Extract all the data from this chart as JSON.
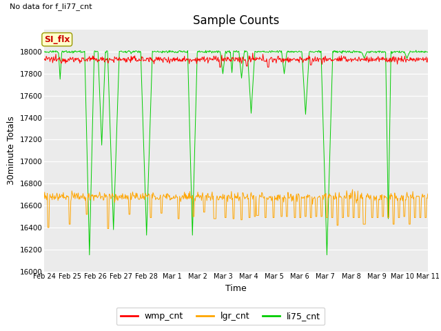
{
  "title": "Sample Counts",
  "xlabel": "Time",
  "ylabel": "30minute Totals",
  "top_left_text": "No data for f_li77_cnt",
  "annotation_text": "SI_flx",
  "ylim": [
    16000,
    18200
  ],
  "yticks": [
    16000,
    16200,
    16400,
    16600,
    16800,
    17000,
    17200,
    17400,
    17600,
    17800,
    18000
  ],
  "x_tick_labels": [
    "Feb 24",
    "Feb 25",
    "Feb 26",
    "Feb 27",
    "Feb 28",
    "Mar 1",
    "Mar 2",
    "Mar 3",
    "Mar 4",
    "Mar 5",
    "Mar 6",
    "Mar 7",
    "Mar 8",
    "Mar 9",
    "Mar 10",
    "Mar 11"
  ],
  "wmp_color": "#ff0000",
  "lgr_color": "#ffa500",
  "li75_color": "#00cc00",
  "fig_bg_color": "#ffffff",
  "plot_bg_color": "#ebebeb",
  "legend_colors": [
    "#ff0000",
    "#ffa500",
    "#00cc00"
  ],
  "legend_labels": [
    "wmp_cnt",
    "lgr_cnt",
    "li75_cnt"
  ],
  "wmp_base": 17930,
  "lgr_base": 16680,
  "li75_base": 18000
}
